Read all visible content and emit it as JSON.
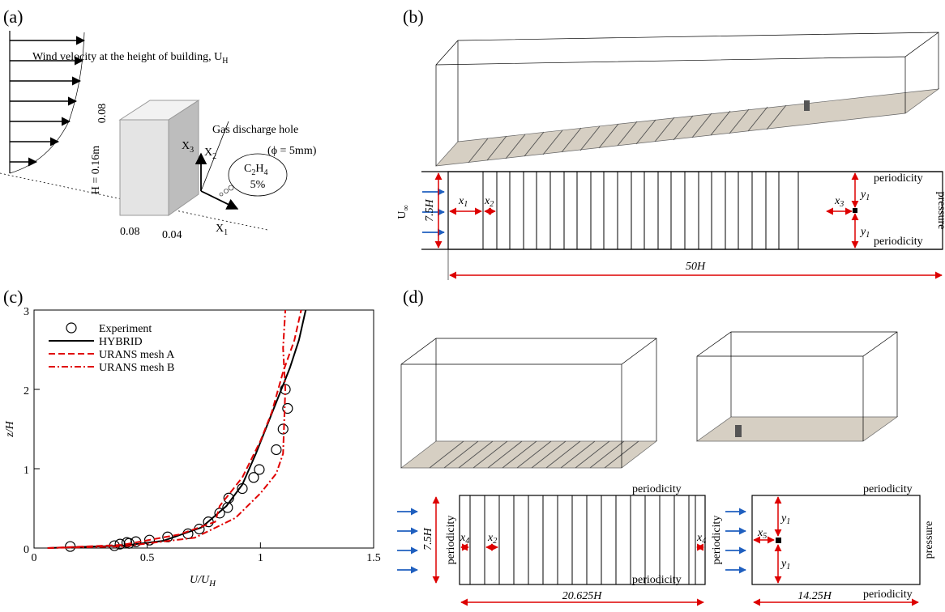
{
  "panels": [
    "(a)",
    "(b)",
    "(c)",
    "(d)"
  ],
  "panel_a": {
    "wind_label": {
      "text": "Wind velocity at the height of building, U",
      "sub": "H"
    },
    "dim_top": "0.08",
    "dim_height": "H = 0.16m",
    "dim_width": "0.08",
    "dim_depth": "0.04",
    "x1": {
      "text": "X",
      "sub": "1"
    },
    "x2": {
      "text": "X",
      "sub": "2"
    },
    "x3": {
      "text": "X",
      "sub": "3"
    },
    "hole_label": "Gas discharge hole",
    "hole_size": "(ϕ = 5mm)",
    "gas": {
      "c": "C",
      "c_sub": "2",
      "h": "H",
      "h_sub": "4",
      "fraction": "5%"
    }
  },
  "panel_b": {
    "inflow": {
      "text": "U",
      "sub": "∞"
    },
    "height": "7.5H",
    "x1": {
      "text": "x",
      "sub": "1"
    },
    "x2": {
      "text": "x",
      "sub": "2"
    },
    "x3": {
      "text": "x",
      "sub": "3"
    },
    "y1": {
      "text": "y",
      "sub": "1"
    },
    "periodicity": "periodicity",
    "outlet": "pressure",
    "length": "50H"
  },
  "panel_d": {
    "height": "7.5H",
    "periodicity": "periodicity",
    "outlet": "pressure",
    "x2": {
      "text": "x",
      "sub": "2"
    },
    "x4": {
      "text": "x",
      "sub": "4"
    },
    "x5": {
      "text": "x",
      "sub": "5"
    },
    "y1": {
      "text": "y",
      "sub": "1"
    },
    "length_left": "20.625H",
    "length_right": "14.25H"
  },
  "chart_data": {
    "type": "line",
    "xlabel": {
      "text": "U/U",
      "sub": "H"
    },
    "ylabel": "z/H",
    "xlim": [
      0,
      1.5
    ],
    "ylim": [
      0,
      3
    ],
    "xticks": [
      0,
      0.5,
      1,
      1.5
    ],
    "yticks": [
      0,
      1,
      2,
      3
    ],
    "legend": "upper left",
    "series": [
      {
        "name": "Experiment",
        "color": "#000000",
        "style": "markers",
        "x": [
          0.16,
          0.355,
          0.38,
          0.41,
          0.42,
          0.45,
          0.51,
          0.59,
          0.68,
          0.73,
          0.77,
          0.82,
          0.855,
          0.86,
          0.92,
          0.97,
          0.995,
          1.07,
          1.1,
          1.12,
          1.11
        ],
        "values": [
          0.02,
          0.03,
          0.05,
          0.07,
          0.06,
          0.08,
          0.1,
          0.14,
          0.18,
          0.24,
          0.33,
          0.44,
          0.51,
          0.63,
          0.75,
          0.89,
          0.99,
          1.24,
          1.5,
          1.76,
          2.0
        ]
      },
      {
        "name": "HYBRID",
        "color": "#000000",
        "style": "solid",
        "x": [
          0.06,
          0.39,
          0.57,
          0.74,
          0.85,
          0.92,
          0.98,
          1.03,
          1.08,
          1.13,
          1.17,
          1.2
        ],
        "values": [
          0,
          0.03,
          0.09,
          0.26,
          0.53,
          0.8,
          1.19,
          1.55,
          1.91,
          2.27,
          2.62,
          3.0
        ]
      },
      {
        "name": "URANS mesh A",
        "color": "#e00000",
        "style": "dashed",
        "x": [
          0.06,
          0.39,
          0.64,
          0.8,
          0.82,
          0.92,
          1.0,
          1.05,
          1.1,
          1.15,
          1.18
        ],
        "values": [
          0,
          0.04,
          0.17,
          0.33,
          0.53,
          0.89,
          1.35,
          1.71,
          2.22,
          2.62,
          3.0
        ]
      },
      {
        "name": "URANS mesh B",
        "color": "#e00000",
        "style": "dashdot",
        "x": [
          0.06,
          0.39,
          0.71,
          0.89,
          1.0,
          1.07,
          1.1,
          1.11,
          1.1,
          1.11
        ],
        "values": [
          0,
          0.02,
          0.13,
          0.38,
          0.69,
          0.94,
          1.19,
          2.0,
          2.52,
          3.0
        ]
      }
    ]
  }
}
